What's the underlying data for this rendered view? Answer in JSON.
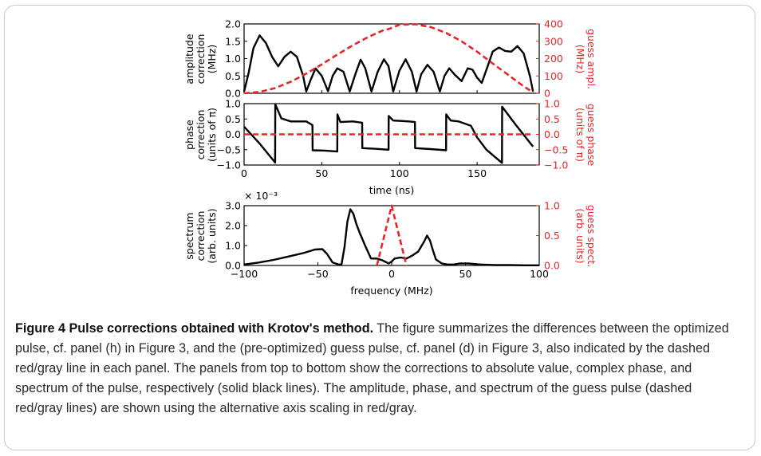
{
  "caption": {
    "label": "Figure 4",
    "title": "Pulse corrections obtained with Krotov's method.",
    "body": "The figure summarizes the differences between the optimized pulse, cf. panel (h) in Figure 3, and the (pre-optimized) guess pulse, cf. panel (d) in Figure 3, also indicated by the dashed red/gray line in each panel. The panels from top to bottom show the corrections to absolute value, complex phase, and spectrum of the pulse, respectively (solid black lines). The amplitude, phase, and spectrum of the guess pulse (dashed red/gray lines) are shown using the alternative axis scaling in red/gray."
  },
  "colors": {
    "correction": "#000000",
    "guess": "#e8262a"
  },
  "chart_data": [
    {
      "type": "line",
      "panel": "amplitude",
      "xlim": [
        0,
        190
      ],
      "ylim": [
        0,
        2
      ],
      "y2lim": [
        0,
        400
      ],
      "yticks": [
        "0.0",
        "0.5",
        "1.0",
        "1.5",
        "2.0"
      ],
      "y2ticks": [
        "0",
        "100",
        "200",
        "300",
        "400"
      ],
      "ylabel": [
        "amplitude",
        "correction",
        "(MHz)"
      ],
      "y2label": [
        "guess ampl.",
        "(MHz)"
      ],
      "series": [
        {
          "role": "correction",
          "axis": "left",
          "x": [
            0,
            3,
            6,
            10,
            14,
            18,
            22,
            26,
            30,
            34,
            38,
            40,
            43,
            46,
            50,
            54,
            57,
            60,
            64,
            68,
            72,
            75,
            78,
            82,
            86,
            90,
            93,
            96,
            100,
            104,
            108,
            111,
            114,
            118,
            122,
            126,
            129,
            132,
            136,
            140,
            144,
            147,
            150,
            153,
            157,
            160,
            164,
            168,
            172,
            176,
            180,
            184,
            186
          ],
          "y": [
            0.05,
            0.6,
            1.3,
            1.67,
            1.45,
            1.05,
            0.78,
            1.05,
            1.2,
            1.05,
            0.5,
            0.05,
            0.4,
            0.72,
            0.5,
            0.06,
            0.5,
            0.72,
            0.62,
            0.05,
            0.6,
            0.97,
            0.72,
            0.05,
            0.62,
            0.98,
            0.78,
            0.05,
            0.65,
            0.98,
            0.62,
            0.05,
            0.55,
            0.82,
            0.62,
            0.05,
            0.5,
            0.72,
            0.52,
            0.35,
            0.72,
            0.68,
            0.45,
            0.3,
            0.8,
            1.2,
            1.32,
            1.22,
            1.2,
            1.36,
            1.15,
            0.5,
            0.05
          ]
        },
        {
          "role": "guess",
          "axis": "right",
          "dashed": true,
          "x": [
            0,
            10,
            20,
            30,
            40,
            50,
            60,
            70,
            80,
            90,
            93,
            100,
            110,
            120,
            130,
            140,
            150,
            160,
            170,
            180,
            186
          ],
          "y": [
            0,
            8,
            30,
            66,
            113,
            167,
            223,
            277,
            325,
            365,
            370,
            395,
            398,
            382,
            348,
            300,
            240,
            172,
            106,
            40,
            5
          ]
        }
      ]
    },
    {
      "type": "line",
      "panel": "phase",
      "xlim": [
        0,
        190
      ],
      "ylim": [
        -1,
        1
      ],
      "y2lim": [
        -1,
        1
      ],
      "xticks": [
        "0",
        "50",
        "100",
        "150"
      ],
      "yticks": [
        "−1.0",
        "−0.5",
        "0.0",
        "0.5",
        "1.0"
      ],
      "y2ticks": [
        "−1.0",
        "−0.5",
        "0.0",
        "0.5",
        "1.0"
      ],
      "xlabel": "time (ns)",
      "ylabel": [
        "phase",
        "correction",
        "(units of π)"
      ],
      "y2label": [
        "guess phase",
        "(units of π)"
      ],
      "series": [
        {
          "role": "correction",
          "axis": "left",
          "x": [
            0,
            10,
            20,
            20.1,
            24,
            30,
            40,
            44,
            44.1,
            52,
            60,
            60.1,
            62,
            70,
            76,
            76.1,
            84,
            93,
            93.1,
            96,
            106,
            110,
            110.1,
            120,
            130,
            130.1,
            133,
            138,
            146,
            150,
            156,
            166,
            166.1,
            175,
            186
          ],
          "y": [
            0.25,
            -0.3,
            -0.92,
            0.98,
            0.52,
            0.42,
            0.42,
            0.3,
            -0.52,
            -0.53,
            -0.56,
            0.65,
            0.4,
            0.42,
            0.38,
            -0.45,
            -0.47,
            -0.5,
            0.6,
            0.45,
            0.42,
            0.4,
            -0.45,
            -0.48,
            -0.52,
            0.65,
            0.45,
            0.42,
            0.28,
            -0.1,
            -0.5,
            -0.93,
            0.9,
            0.3,
            -0.4
          ]
        },
        {
          "role": "guess",
          "axis": "right",
          "dashed": true,
          "x": [
            0,
            186
          ],
          "y": [
            0,
            0
          ]
        }
      ]
    },
    {
      "type": "line",
      "panel": "spectrum",
      "xlim": [
        -100,
        100
      ],
      "ylim": [
        0,
        3
      ],
      "y2lim": [
        0,
        1
      ],
      "xticks": [
        "−100",
        "−50",
        "0",
        "50",
        "100"
      ],
      "yticks": [
        "0.0",
        "1.0",
        "2.0",
        "3.0"
      ],
      "y2ticks": [
        "0.0",
        "0.5",
        "1.0"
      ],
      "xlabel": "frequency (MHz)",
      "ylabel": [
        "spectrum",
        "correction",
        "(arb. units)"
      ],
      "y2label": [
        "guess spect.",
        "(arb. units)"
      ],
      "y_multiplier": "× 10⁻³",
      "series": [
        {
          "role": "correction",
          "axis": "left",
          "x": [
            -100,
            -90,
            -80,
            -70,
            -60,
            -52,
            -47,
            -44,
            -40,
            -36,
            -34,
            -32,
            -30,
            -28,
            -26,
            -24,
            -22,
            -18,
            -14,
            -10,
            -6,
            -2,
            0,
            2,
            6,
            10,
            14,
            18,
            22,
            24,
            26,
            28,
            30,
            34,
            38,
            42,
            46,
            52,
            60,
            70,
            80,
            90,
            100
          ],
          "y": [
            0.05,
            0.15,
            0.28,
            0.45,
            0.62,
            0.8,
            0.82,
            0.6,
            0.15,
            0.05,
            0.05,
            0.9,
            2.2,
            2.82,
            2.6,
            2.1,
            1.7,
            1.0,
            0.35,
            0.35,
            0.25,
            0.1,
            0.2,
            0.35,
            0.4,
            0.35,
            0.5,
            0.7,
            1.2,
            1.5,
            1.25,
            0.75,
            0.3,
            0.1,
            0.05,
            0.05,
            0.1,
            0.1,
            0.05,
            0.02,
            0.02,
            0.01,
            0.01
          ]
        },
        {
          "role": "guess",
          "axis": "right",
          "dashed": true,
          "x": [
            -10,
            0,
            10
          ],
          "y": [
            0,
            1,
            0
          ]
        }
      ]
    }
  ]
}
